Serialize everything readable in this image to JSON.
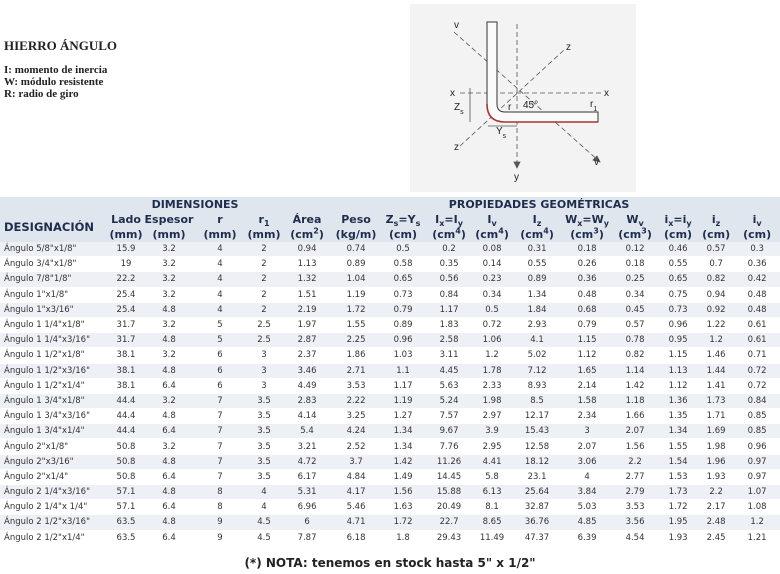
{
  "header": {
    "title": "HIERRO ÁNGULO",
    "legend": [
      "I: momento de inercia",
      "W: módulo resistente",
      "R: radio de giro"
    ]
  },
  "diagram": {
    "labels": [
      [
        {
          "text": "v"
        }
      ],
      [
        {
          "text": "z"
        }
      ],
      [
        {
          "text": "x"
        }
      ],
      [
        {
          "text": "x"
        }
      ],
      [
        {
          "text": "Z"
        },
        {
          "text": "s",
          "style": "sub"
        }
      ],
      [
        {
          "text": "r"
        }
      ],
      [
        {
          "text": "45°"
        }
      ],
      [
        {
          "text": "r"
        },
        {
          "text": "1",
          "style": "sub"
        }
      ],
      [
        {
          "text": "z"
        }
      ],
      [
        {
          "text": "Y"
        },
        {
          "text": "s",
          "style": "sub"
        }
      ],
      [
        {
          "text": "v"
        }
      ],
      [
        {
          "text": "y"
        }
      ]
    ]
  },
  "table": {
    "groups": [
      "DIMENSIONES",
      "PROPIEDADES GEOMÉTRICAS"
    ],
    "columns": [
      {
        "name": [
          {
            "text": "DESIGNACIÓN"
          }
        ]
      },
      {
        "name": [
          {
            "text": "Lado"
          }
        ],
        "unit": [
          {
            "text": "(mm)"
          }
        ]
      },
      {
        "name": [
          {
            "text": "Espesor"
          }
        ],
        "unit": [
          {
            "text": "(mm)"
          }
        ]
      },
      {
        "name": [
          {
            "text": "r"
          }
        ],
        "unit": [
          {
            "text": "(mm)"
          }
        ]
      },
      {
        "name": [
          {
            "text": "r"
          },
          {
            "text": "1",
            "style": "sub"
          }
        ],
        "unit": [
          {
            "text": "(mm)"
          }
        ]
      },
      {
        "name": [
          {
            "text": "Área"
          }
        ],
        "unit": [
          {
            "text": "(cm"
          },
          {
            "text": "2",
            "style": "sup"
          },
          {
            "text": ")"
          }
        ]
      },
      {
        "name": [
          {
            "text": "Peso"
          }
        ],
        "unit": [
          {
            "text": "(kg/m)"
          }
        ]
      },
      {
        "name": [
          {
            "text": "Z"
          },
          {
            "text": "s",
            "style": "sub"
          },
          {
            "text": "=Y"
          },
          {
            "text": "s",
            "style": "sub"
          }
        ],
        "unit": [
          {
            "text": "(cm)"
          }
        ]
      },
      {
        "name": [
          {
            "text": "I"
          },
          {
            "text": "x",
            "style": "sub"
          },
          {
            "text": "=I"
          },
          {
            "text": "y",
            "style": "sub"
          }
        ],
        "unit": [
          {
            "text": "(cm"
          },
          {
            "text": "4",
            "style": "sup"
          },
          {
            "text": ")"
          }
        ]
      },
      {
        "name": [
          {
            "text": "I"
          },
          {
            "text": "v",
            "style": "sub"
          }
        ],
        "unit": [
          {
            "text": "(cm"
          },
          {
            "text": "4",
            "style": "sup"
          },
          {
            "text": ")"
          }
        ]
      },
      {
        "name": [
          {
            "text": "I"
          },
          {
            "text": "z",
            "style": "sub"
          }
        ],
        "unit": [
          {
            "text": "(cm"
          },
          {
            "text": "4",
            "style": "sup"
          },
          {
            "text": ")"
          }
        ]
      },
      {
        "name": [
          {
            "text": "W"
          },
          {
            "text": "x",
            "style": "sub"
          },
          {
            "text": "=W"
          },
          {
            "text": "y",
            "style": "sub"
          }
        ],
        "unit": [
          {
            "text": "(cm"
          },
          {
            "text": "3",
            "style": "sup"
          },
          {
            "text": ")"
          }
        ]
      },
      {
        "name": [
          {
            "text": "W"
          },
          {
            "text": "v",
            "style": "sub"
          }
        ],
        "unit": [
          {
            "text": "(cm"
          },
          {
            "text": "3",
            "style": "sup"
          },
          {
            "text": ")"
          }
        ]
      },
      {
        "name": [
          {
            "text": "i"
          },
          {
            "text": "x",
            "style": "sub"
          },
          {
            "text": "=i"
          },
          {
            "text": "y",
            "style": "sub"
          }
        ],
        "unit": [
          {
            "text": "(cm)"
          }
        ]
      },
      {
        "name": [
          {
            "text": "i"
          },
          {
            "text": "z",
            "style": "sub"
          }
        ],
        "unit": [
          {
            "text": "(cm)"
          }
        ]
      },
      {
        "name": [
          {
            "text": "i"
          },
          {
            "text": "v",
            "style": "sub"
          }
        ],
        "unit": [
          {
            "text": "(cm)"
          }
        ]
      }
    ],
    "rows": [
      [
        "Ángulo 5/8\"x1/8\"",
        15.9,
        3.2,
        4,
        2,
        0.94,
        0.74,
        0.5,
        0.2,
        0.08,
        0.31,
        0.18,
        0.12,
        0.46,
        0.57,
        0.3
      ],
      [
        "Ángulo 3/4\"x1/8\"",
        19,
        3.2,
        4,
        2,
        1.13,
        0.89,
        0.58,
        0.35,
        0.14,
        0.55,
        0.26,
        0.18,
        0.55,
        0.7,
        0.36
      ],
      [
        "Ángulo 7/8\"1/8\"",
        22.2,
        3.2,
        4,
        2,
        1.32,
        1.04,
        0.65,
        0.56,
        0.23,
        0.89,
        0.36,
        0.25,
        0.65,
        0.82,
        0.42
      ],
      [
        "Ángulo 1\"x1/8\"",
        25.4,
        3.2,
        4,
        2,
        1.51,
        1.19,
        0.73,
        0.84,
        0.34,
        1.34,
        0.48,
        0.34,
        0.75,
        0.94,
        0.48
      ],
      [
        "Ángulo 1\"x3/16\"",
        25.4,
        4.8,
        4,
        2,
        2.19,
        1.72,
        0.79,
        1.17,
        0.5,
        1.84,
        0.68,
        0.45,
        0.73,
        0.92,
        0.48
      ],
      [
        "Ángulo 1 1/4\"x1/8\"",
        31.7,
        3.2,
        5,
        2.5,
        1.97,
        1.55,
        0.89,
        1.83,
        0.72,
        2.93,
        0.79,
        0.57,
        0.96,
        1.22,
        0.61
      ],
      [
        "Ángulo 1 1/4\"x3/16\"",
        31.7,
        4.8,
        5,
        2.5,
        2.87,
        2.25,
        0.96,
        2.58,
        1.06,
        4.1,
        1.15,
        0.78,
        0.95,
        1.2,
        0.61
      ],
      [
        "Ángulo 1 1/2\"x1/8\"",
        38.1,
        3.2,
        6,
        3,
        2.37,
        1.86,
        1.03,
        3.11,
        1.2,
        5.02,
        1.12,
        0.82,
        1.15,
        1.46,
        0.71
      ],
      [
        "Ángulo 1 1/2\"x3/16\"",
        38.1,
        4.8,
        6,
        3,
        3.46,
        2.71,
        1.1,
        4.45,
        1.78,
        7.12,
        1.65,
        1.14,
        1.13,
        1.44,
        0.72
      ],
      [
        "Ángulo 1 1/2\"x1/4\"",
        38.1,
        6.4,
        6,
        3,
        4.49,
        3.53,
        1.17,
        5.63,
        2.33,
        8.93,
        2.14,
        1.42,
        1.12,
        1.41,
        0.72
      ],
      [
        "Ángulo 1 3/4\"x1/8\"",
        44.4,
        3.2,
        7,
        3.5,
        2.83,
        2.22,
        1.19,
        5.24,
        1.98,
        8.5,
        1.58,
        1.18,
        1.36,
        1.73,
        0.84
      ],
      [
        "Ángulo 1 3/4\"x3/16\"",
        44.4,
        4.8,
        7,
        3.5,
        4.14,
        3.25,
        1.27,
        7.57,
        2.97,
        12.17,
        2.34,
        1.66,
        1.35,
        1.71,
        0.85
      ],
      [
        "Ángulo 1 3/4\"x1/4\"",
        44.4,
        6.4,
        7,
        3.5,
        5.4,
        4.24,
        1.34,
        9.67,
        3.9,
        15.43,
        3,
        2.07,
        1.34,
        1.69,
        0.85
      ],
      [
        "Ángulo 2\"x1/8\"",
        50.8,
        3.2,
        7,
        3.5,
        3.21,
        2.52,
        1.34,
        7.76,
        2.95,
        12.58,
        2.07,
        1.56,
        1.55,
        1.98,
        0.96
      ],
      [
        "Ángulo 2\"x3/16\"",
        50.8,
        4.8,
        7,
        3.5,
        4.72,
        3.7,
        1.42,
        11.26,
        4.41,
        18.12,
        3.06,
        2.2,
        1.54,
        1.96,
        0.97
      ],
      [
        "Ángulo 2\"x1/4\"",
        50.8,
        6.4,
        7,
        3.5,
        6.17,
        4.84,
        1.49,
        14.45,
        5.8,
        23.1,
        4,
        2.77,
        1.53,
        1.93,
        0.97
      ],
      [
        "Ángulo 2 1/4\"x3/16\"",
        57.1,
        4.8,
        8,
        4,
        5.31,
        4.17,
        1.56,
        15.88,
        6.13,
        25.64,
        3.84,
        2.79,
        1.73,
        2.2,
        1.07
      ],
      [
        "Ángulo 2 1/4\"x 1/4\"",
        57.1,
        6.4,
        8,
        4,
        6.96,
        5.46,
        1.63,
        20.49,
        8.1,
        32.87,
        5.03,
        3.53,
        1.72,
        2.17,
        1.08
      ],
      [
        "Ángulo 2 1/2\"x3/16\"",
        63.5,
        4.8,
        9,
        4.5,
        6,
        4.71,
        1.72,
        22.7,
        8.65,
        36.76,
        4.85,
        3.56,
        1.95,
        2.48,
        1.2
      ],
      [
        "Ángulo 2 1/2\"x1/4\"",
        63.5,
        6.4,
        9,
        4.5,
        7.87,
        6.18,
        1.8,
        29.43,
        11.49,
        47.37,
        6.39,
        4.54,
        1.93,
        2.45,
        1.21
      ]
    ]
  },
  "note": "(*) NOTA: tenemos en stock hasta 5\" x 1/2\""
}
